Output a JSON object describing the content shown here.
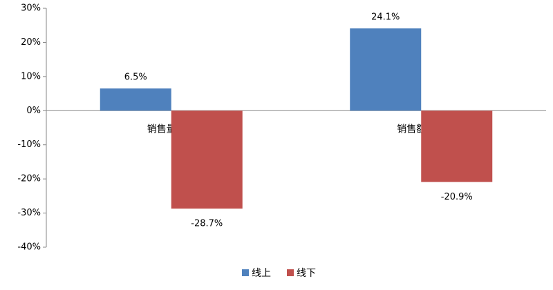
{
  "chart_data": {
    "type": "bar",
    "categories": [
      "销售量同比",
      "销售额同比"
    ],
    "series": [
      {
        "name": "线上",
        "color": "#4f81bd",
        "values": [
          6.5,
          24.1
        ],
        "value_labels": [
          "6.5%",
          "24.1%"
        ]
      },
      {
        "name": "线下",
        "color": "#c0504d",
        "values": [
          -28.7,
          -20.9
        ],
        "value_labels": [
          "-28.7%",
          "-20.9%"
        ]
      }
    ],
    "ylim": [
      -40,
      30
    ],
    "yticks": [
      {
        "value": -40,
        "label": "-40%"
      },
      {
        "value": -30,
        "label": "-30%"
      },
      {
        "value": -20,
        "label": "-20%"
      },
      {
        "value": -10,
        "label": "-10%"
      },
      {
        "value": 0,
        "label": "0%"
      },
      {
        "value": 10,
        "label": "10%"
      },
      {
        "value": 20,
        "label": "20%"
      },
      {
        "value": 30,
        "label": "30%"
      }
    ],
    "grid": false,
    "legend": "bottom"
  }
}
